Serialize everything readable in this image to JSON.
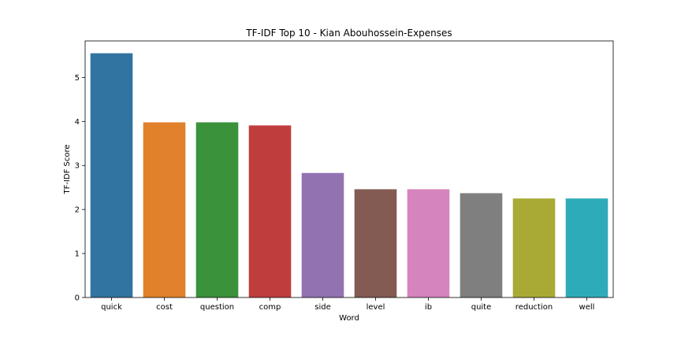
{
  "chart_data": {
    "type": "bar",
    "title": "TF-IDF Top 10 - Kian Abouhossein-Expenses",
    "xlabel": "Word",
    "ylabel": "TF-IDF Score",
    "categories": [
      "quick",
      "cost",
      "question",
      "comp",
      "side",
      "level",
      "ib",
      "quite",
      "reduction",
      "well"
    ],
    "values": [
      5.55,
      3.98,
      3.98,
      3.91,
      2.83,
      2.46,
      2.46,
      2.37,
      2.25,
      2.25
    ],
    "colors": [
      "#3274a1",
      "#e1812c",
      "#3a923a",
      "#c03d3e",
      "#9372b2",
      "#845b53",
      "#d684bd",
      "#7f7f7f",
      "#a9aa35",
      "#2eabb8"
    ],
    "yticks": [
      0,
      1,
      2,
      3,
      4,
      5
    ],
    "ylim": [
      0,
      5.83
    ],
    "grid": false,
    "legend": "none"
  }
}
